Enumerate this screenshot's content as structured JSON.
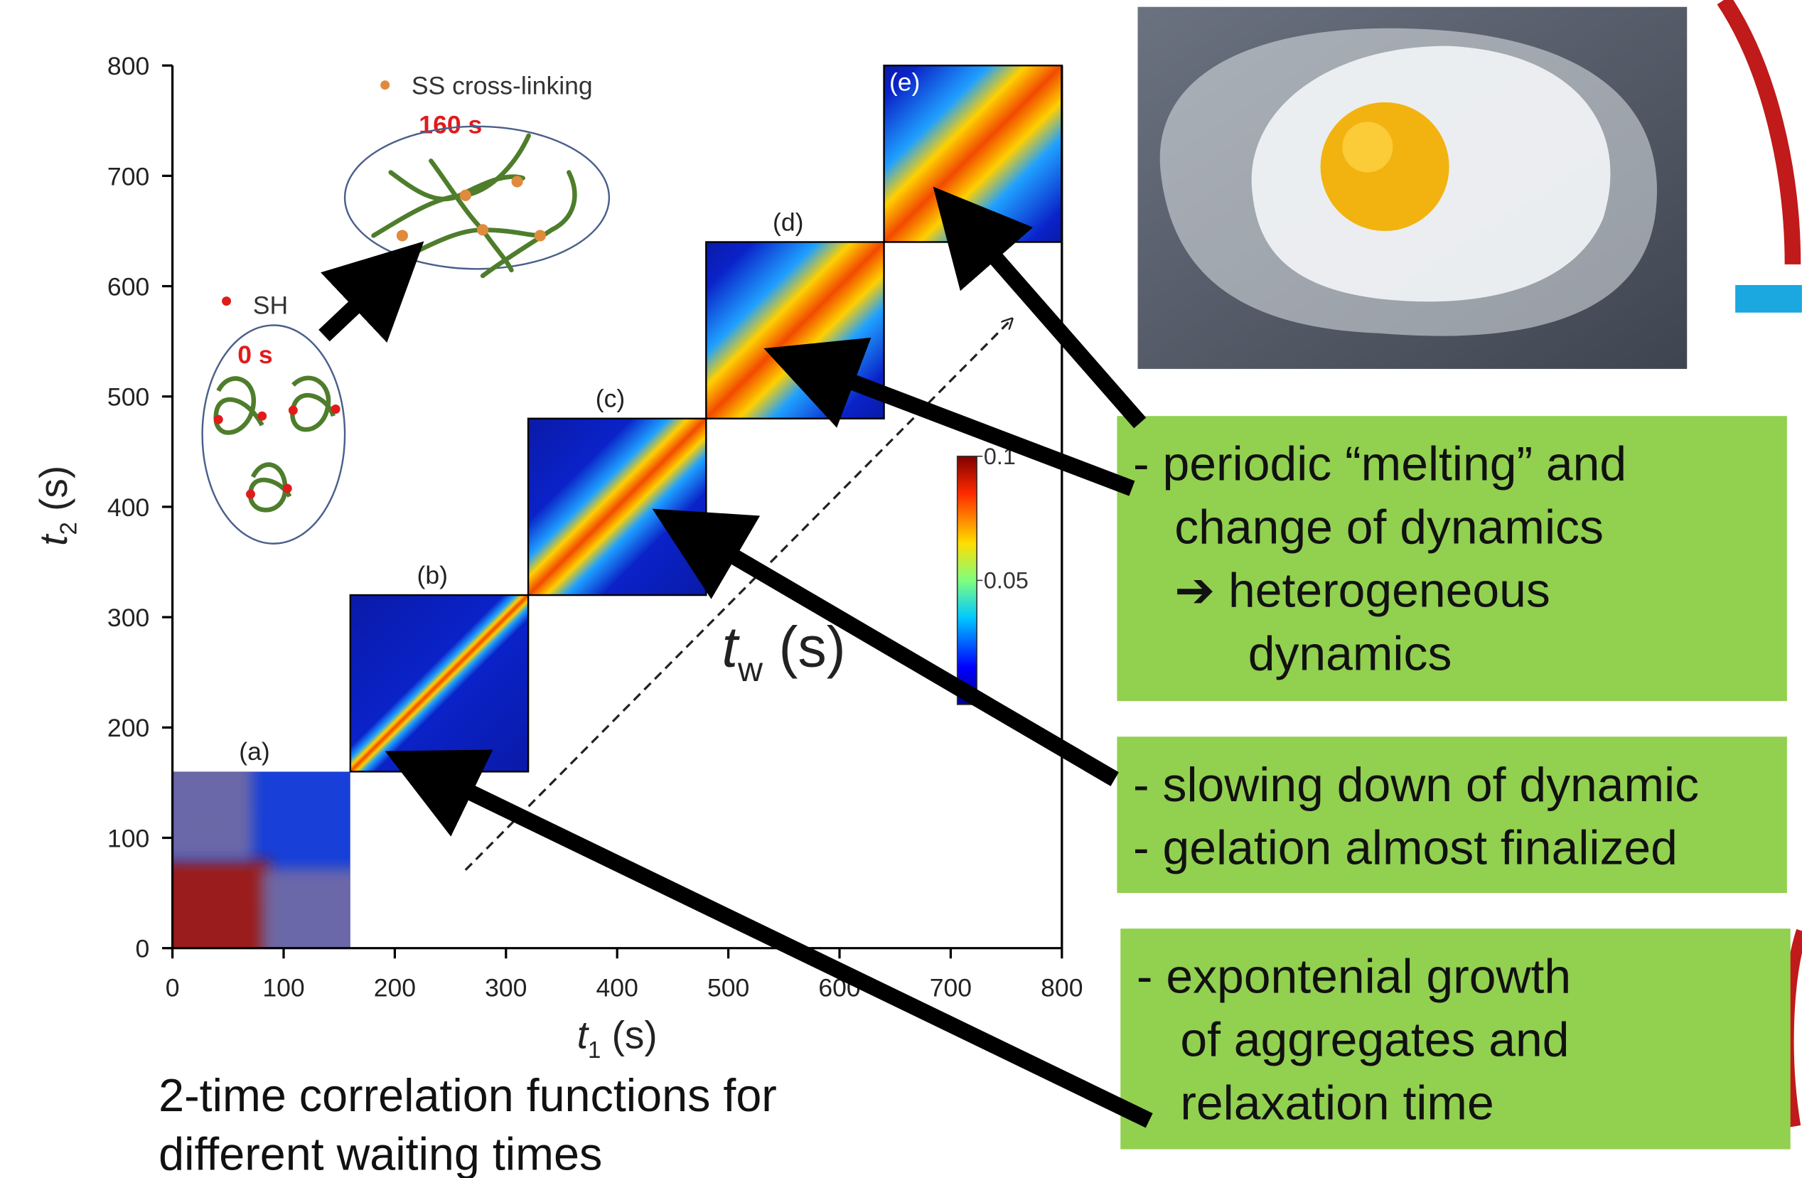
{
  "chart_data": {
    "type": "two-time-correlation",
    "x_label": {
      "symbol": "t",
      "subscript": "1",
      "unit": "(s)"
    },
    "y_label": {
      "symbol": "t",
      "subscript": "2",
      "unit": "(s)"
    },
    "xlim": [
      0,
      800
    ],
    "ylim": [
      0,
      800
    ],
    "xticks": [
      0,
      100,
      200,
      300,
      400,
      500,
      600,
      700,
      800
    ],
    "yticks": [
      0,
      100,
      200,
      300,
      400,
      500,
      600,
      700,
      800
    ],
    "panels": [
      {
        "label": "(a)",
        "range": [
          0,
          160
        ]
      },
      {
        "label": "(b)",
        "range": [
          160,
          320
        ]
      },
      {
        "label": "(c)",
        "range": [
          320,
          480
        ]
      },
      {
        "label": "(d)",
        "range": [
          480,
          640
        ]
      },
      {
        "label": "(e)",
        "range": [
          640,
          800
        ]
      }
    ],
    "colorbar": {
      "lim": [
        0,
        0.1
      ],
      "ticks": [
        0.1,
        0.05
      ]
    },
    "tw_label": {
      "symbol": "t",
      "subscript": "w",
      "unit": "(s)"
    },
    "inset": {
      "before": {
        "legend": "SH",
        "time": "0 s"
      },
      "after": {
        "legend": "SS cross-linking",
        "time": "160 s"
      }
    }
  },
  "caption": [
    "2-time correlation functions for",
    "different waiting times"
  ],
  "notes": [
    [
      "-  periodic “melting” and",
      "change of dynamics",
      "➔ heterogeneous",
      "dynamics"
    ],
    [
      "-  slowing down of dynamic",
      "-  gelation almost finalized"
    ],
    [
      "-  expontenial growth",
      "of aggregates and",
      "relaxation time"
    ]
  ]
}
